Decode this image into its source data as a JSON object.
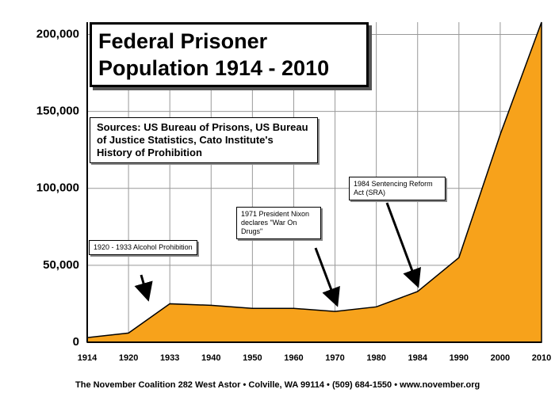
{
  "chart_data": {
    "type": "area",
    "title": "Federal Prisoner Population 1914 - 2010",
    "sources": "Sources: US Bureau of Prisons, US Bureau of Justice Statistics, Cato Institute's History of Prohibition",
    "annotations": [
      "1920 - 1933 Alcohol Prohibition",
      "1971 President Nixon declares \"War On Drugs\"",
      "1984 Sentencing Reform Act (SRA)"
    ],
    "footer": "The November Coalition 282 West Astor • Colville, WA 99114 • (509) 684-1550 • www.november.org",
    "categories": [
      "1914",
      "1920",
      "1933",
      "1940",
      "1950",
      "1960",
      "1970",
      "1980",
      "1984",
      "1990",
      "2000",
      "2010"
    ],
    "values": [
      3000,
      6000,
      25000,
      24000,
      22000,
      22000,
      20000,
      23000,
      33000,
      55000,
      135000,
      208000
    ],
    "color": "#f7a21b",
    "ylim": [
      0,
      208000
    ],
    "yticks": [
      0,
      {
        "value": 50000,
        "label": "50,000"
      },
      {
        "value": 100000,
        "label": "100,000"
      },
      {
        "value": 150000,
        "label": "150,000"
      },
      {
        "value": 200000,
        "label": "200,000"
      }
    ],
    "grid": true
  }
}
